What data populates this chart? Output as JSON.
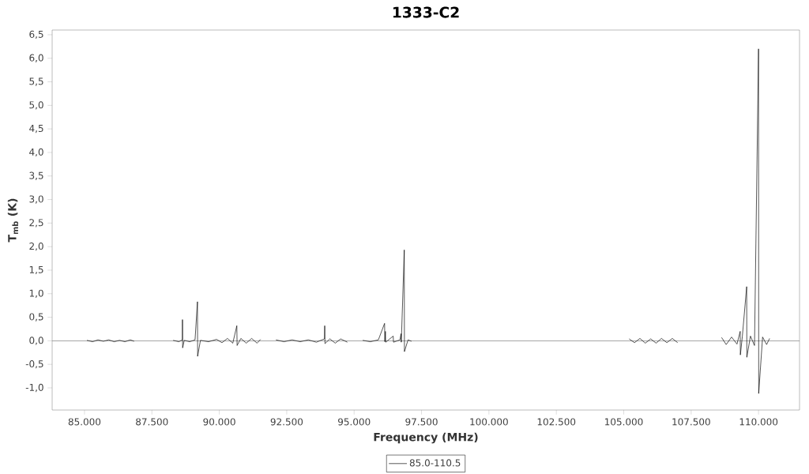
{
  "chart_data": {
    "type": "line",
    "title": "1333-C2",
    "xlabel": "Frequency (MHz)",
    "ylabel": "T$_{mb}$ (K)",
    "xlim": [
      83800,
      111520
    ],
    "ylim": [
      -1.47,
      6.6
    ],
    "xticks": [
      {
        "value": 85000,
        "label": "85.000"
      },
      {
        "value": 87500,
        "label": "87.500"
      },
      {
        "value": 90000,
        "label": "90.000"
      },
      {
        "value": 92500,
        "label": "92.500"
      },
      {
        "value": 95000,
        "label": "95.000"
      },
      {
        "value": 97500,
        "label": "97.500"
      },
      {
        "value": 100000,
        "label": "100.000"
      },
      {
        "value": 102500,
        "label": "102.500"
      },
      {
        "value": 105000,
        "label": "105.000"
      },
      {
        "value": 107500,
        "label": "107.500"
      },
      {
        "value": 110000,
        "label": "110.000"
      }
    ],
    "yticks": [
      {
        "value": -1.0,
        "label": "-1,0"
      },
      {
        "value": -0.5,
        "label": "-0,5"
      },
      {
        "value": 0.0,
        "label": "0,0"
      },
      {
        "value": 0.5,
        "label": "0,5"
      },
      {
        "value": 1.0,
        "label": "1,0"
      },
      {
        "value": 1.5,
        "label": "1,5"
      },
      {
        "value": 2.0,
        "label": "2,0"
      },
      {
        "value": 2.5,
        "label": "2,5"
      },
      {
        "value": 3.0,
        "label": "3,0"
      },
      {
        "value": 3.5,
        "label": "3,5"
      },
      {
        "value": 4.0,
        "label": "4,0"
      },
      {
        "value": 4.5,
        "label": "4,5"
      },
      {
        "value": 5.0,
        "label": "5,0"
      },
      {
        "value": 5.5,
        "label": "5,5"
      },
      {
        "value": 6.0,
        "label": "6,0"
      },
      {
        "value": 6.5,
        "label": "6,5"
      }
    ],
    "legend": "bottom",
    "marker": "none",
    "line_style": "solid",
    "ref_lines": [
      {
        "axis": "y",
        "value": 0,
        "color": "#808080"
      }
    ],
    "series": [
      {
        "name": "85.0-110.5",
        "color": "#000000",
        "x": [
          85090,
          85300,
          85500,
          85700,
          85900,
          86100,
          86300,
          86500,
          86700,
          86840,
          87500,
          88290,
          88500,
          88630,
          88634,
          88640,
          88700,
          88900,
          89100,
          89190,
          89196,
          89300,
          89600,
          89900,
          90100,
          90300,
          90500,
          90650,
          90660,
          90800,
          91000,
          91200,
          91400,
          91530,
          91800,
          92100,
          92400,
          92700,
          93000,
          93300,
          93600,
          93900,
          93910,
          93920,
          94100,
          94300,
          94500,
          94750,
          95000,
          95320,
          95600,
          95900,
          96130,
          96140,
          96160,
          96170,
          96300,
          96450,
          96460,
          96700,
          96740,
          96750,
          96860,
          96866,
          97000,
          97130,
          101000,
          105200,
          105400,
          105600,
          105800,
          106000,
          106200,
          106400,
          106600,
          106800,
          107000,
          108000,
          108630,
          108800,
          109000,
          109200,
          109320,
          109326,
          109400,
          109560,
          109566,
          109700,
          109850,
          110000,
          110006,
          110150,
          110300,
          110410
        ],
        "values": [
          0.01,
          -0.02,
          0.02,
          -0.01,
          0.02,
          -0.02,
          0.01,
          -0.02,
          0.02,
          -0.01,
          null,
          0.01,
          -0.02,
          0.02,
          0.45,
          -0.15,
          0.01,
          -0.02,
          0.02,
          0.83,
          -0.33,
          0.01,
          -0.02,
          0.03,
          -0.04,
          0.05,
          -0.05,
          0.32,
          -0.1,
          0.05,
          -0.05,
          0.05,
          -0.05,
          0.03,
          null,
          0.02,
          -0.02,
          0.02,
          -0.02,
          0.02,
          -0.03,
          0.04,
          0.32,
          -0.06,
          0.04,
          -0.05,
          0.04,
          -0.03,
          null,
          0.01,
          -0.02,
          0.02,
          0.37,
          -0.02,
          0.2,
          -0.03,
          0.03,
          0.1,
          -0.03,
          0.02,
          0.15,
          -0.03,
          1.93,
          -0.23,
          0.02,
          -0.01,
          null,
          0.04,
          -0.04,
          0.05,
          -0.05,
          0.04,
          -0.05,
          0.05,
          -0.04,
          0.05,
          -0.04,
          null,
          0.07,
          -0.08,
          0.08,
          -0.07,
          0.2,
          -0.3,
          0.1,
          1.15,
          -0.35,
          0.1,
          -0.1,
          6.2,
          -1.12,
          0.08,
          -0.08,
          0.05
        ]
      }
    ]
  }
}
